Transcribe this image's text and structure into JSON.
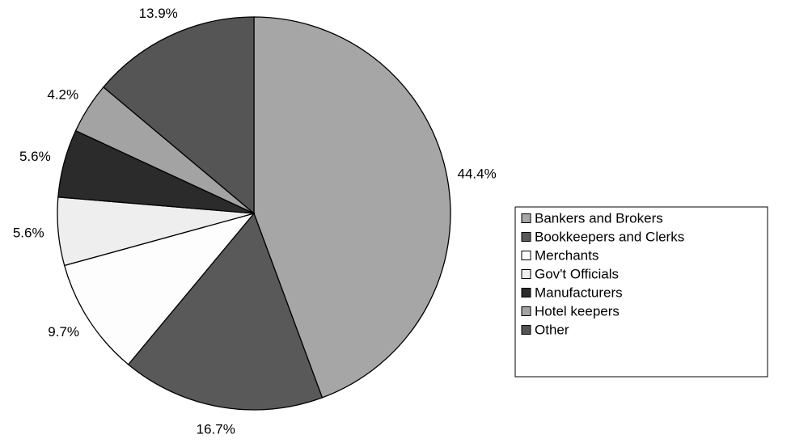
{
  "chart_data": {
    "type": "pie",
    "categories": [
      "Bankers and Brokers",
      "Bookkeepers and Clerks",
      "Merchants",
      "Gov't Officials",
      "Manufacturers",
      "Hotel keepers",
      "Other"
    ],
    "values": [
      44.4,
      16.7,
      9.7,
      5.6,
      5.6,
      4.2,
      13.9
    ],
    "value_labels": [
      "44.4%",
      "16.7%",
      "9.7%",
      "5.6%",
      "5.6%",
      "4.2%",
      "13.9%"
    ],
    "colors": [
      "#a6a6a6",
      "#595959",
      "#fdfdfd",
      "#eeeeee",
      "#2b2b2b",
      "#a3a3a3",
      "#555555"
    ],
    "legend": "right"
  }
}
